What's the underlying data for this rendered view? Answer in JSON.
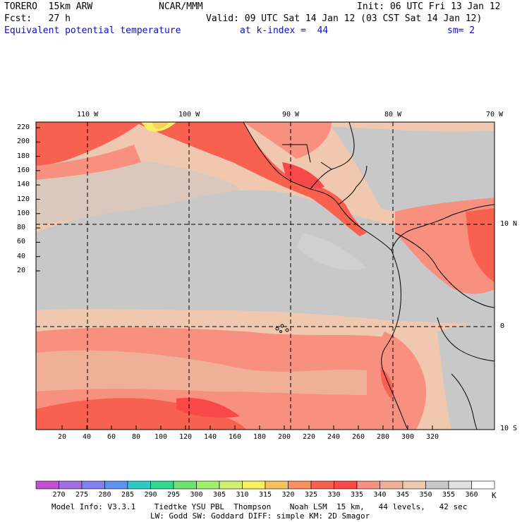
{
  "header": {
    "model": "TORERO  15km ARW",
    "center": "NCAR/MMM",
    "init": "Init: 06 UTC Fri 13 Jan 12",
    "forecast": "Fcst:   27 h",
    "valid": "Valid: 09 UTC Sat 14 Jan 12 (03 CST Sat 14 Jan 12)",
    "field": "Equivalent potential temperature",
    "kindex": "at k-index =  44",
    "smooth": "sm= 2"
  },
  "map": {
    "top_lon_labels": [
      "110 W",
      "100 W",
      "90 W",
      "80 W",
      "70 W"
    ],
    "right_lat_labels": [
      "10 N",
      "0",
      "10 S"
    ],
    "left_grid_labels": [
      "220",
      "200",
      "180",
      "160",
      "140",
      "120",
      "100",
      "80",
      "60",
      "40",
      "20"
    ],
    "bottom_grid_labels": [
      "20",
      "40",
      "60",
      "80",
      "100",
      "120",
      "140",
      "160",
      "180",
      "200",
      "220",
      "240",
      "260",
      "280",
      "300",
      "320"
    ]
  },
  "colorbar": {
    "labels": [
      "270",
      "275",
      "280",
      "285",
      "290",
      "295",
      "300",
      "305",
      "310",
      "315",
      "320",
      "325",
      "330",
      "335",
      "340",
      "345",
      "350",
      "355",
      "360"
    ],
    "unit": "K",
    "colors": [
      "#c050d0",
      "#a070e0",
      "#8080f0",
      "#6090f0",
      "#30c8c0",
      "#30d890",
      "#70e070",
      "#a0f070",
      "#d0f070",
      "#f8f060",
      "#f8c060",
      "#f89060",
      "#f86050",
      "#f84848",
      "#f89080",
      "#f0b098",
      "#f0c8b0",
      "#c8c8c8",
      "#e0e0e0",
      "#ffffff"
    ]
  },
  "footer": {
    "line1": "Model Info: V3.3.1    Tiedtke YSU PBL  Thompson    Noah LSM  15 km,   44 levels,   42 sec",
    "line2": "LW: Godd SW: Goddard DIFF: simple KM: 2D Smagor"
  }
}
